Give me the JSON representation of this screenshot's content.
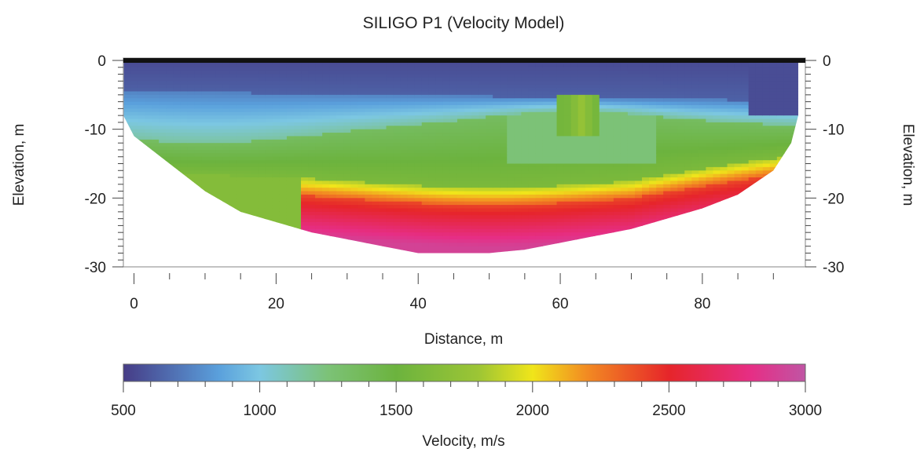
{
  "chart_data": {
    "type": "heatmap",
    "title": "SILIGO P1 (Velocity Model)",
    "xlabel": "Distance,  m",
    "ylabel": "Elevation, m",
    "ylabel_right": "Elevation, m",
    "xlim": [
      -1.5,
      94.5
    ],
    "ylim": [
      -30,
      0
    ],
    "x_ticks": [
      0,
      20,
      40,
      60,
      80
    ],
    "x_tick_labels": [
      "0",
      "20",
      "40",
      "60",
      "80"
    ],
    "y_ticks": [
      0,
      -10,
      -20,
      -30
    ],
    "y_tick_labels": [
      "0",
      "-10",
      "-20",
      "-30"
    ],
    "colorbar": {
      "label": "Velocity, m/s",
      "range": [
        500,
        3000
      ],
      "ticks": [
        500,
        1000,
        1500,
        2000,
        2500,
        3000
      ],
      "tick_labels": [
        "500",
        "1000",
        "1500",
        "2000",
        "2500",
        "3000"
      ],
      "colors": [
        {
          "v": 500,
          "c": "#463c86"
        },
        {
          "v": 850,
          "c": "#5aa0dc"
        },
        {
          "v": 1000,
          "c": "#7cc7e2"
        },
        {
          "v": 1250,
          "c": "#7cc277"
        },
        {
          "v": 1500,
          "c": "#6cb33e"
        },
        {
          "v": 1800,
          "c": "#9cc535"
        },
        {
          "v": 2000,
          "c": "#f0e51a"
        },
        {
          "v": 2200,
          "c": "#f28a22"
        },
        {
          "v": 2500,
          "c": "#e6252a"
        },
        {
          "v": 2800,
          "c": "#e62e85"
        },
        {
          "v": 3000,
          "c": "#c055a4"
        }
      ]
    },
    "section_bottom_elevation": [
      {
        "x": -1.5,
        "y": -8
      },
      {
        "x": 0,
        "y": -11
      },
      {
        "x": 5,
        "y": -15
      },
      {
        "x": 10,
        "y": -19
      },
      {
        "x": 15,
        "y": -22
      },
      {
        "x": 20,
        "y": -23.5
      },
      {
        "x": 25,
        "y": -25
      },
      {
        "x": 30,
        "y": -26
      },
      {
        "x": 35,
        "y": -27
      },
      {
        "x": 40,
        "y": -28
      },
      {
        "x": 45,
        "y": -28
      },
      {
        "x": 50,
        "y": -28
      },
      {
        "x": 55,
        "y": -27.5
      },
      {
        "x": 60,
        "y": -26.5
      },
      {
        "x": 65,
        "y": -25.5
      },
      {
        "x": 70,
        "y": -24.5
      },
      {
        "x": 75,
        "y": -23
      },
      {
        "x": 80,
        "y": -21.5
      },
      {
        "x": 85,
        "y": -19.5
      },
      {
        "x": 90,
        "y": -16
      },
      {
        "x": 92.5,
        "y": -12
      },
      {
        "x": 93.5,
        "y": -8
      }
    ],
    "velocity_layers": [
      {
        "name": "low-velocity near surface",
        "velocity": 550,
        "depth_range": [
          0,
          -5
        ]
      },
      {
        "name": "blue layer",
        "velocity": 900,
        "depth_range": [
          -5,
          -10
        ]
      },
      {
        "name": "green layer",
        "velocity": 1500,
        "depth_range": [
          -10,
          -17
        ]
      },
      {
        "name": "yellow transition",
        "velocity": 2000,
        "depth_range": [
          -17,
          -19
        ]
      },
      {
        "name": "red layer",
        "velocity": 2500,
        "depth_range": [
          -19,
          -22
        ]
      },
      {
        "name": "magenta core",
        "velocity": 2900,
        "depth_range": [
          -22,
          -28
        ]
      }
    ]
  }
}
